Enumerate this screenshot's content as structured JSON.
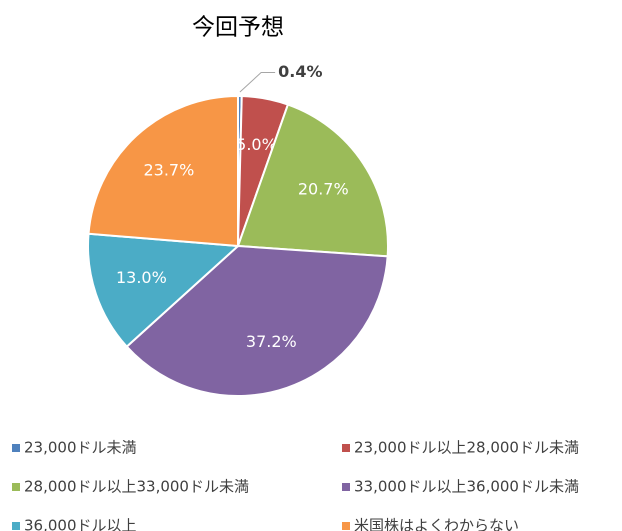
{
  "chart_data": {
    "type": "pie",
    "title": "今回予想",
    "categories": [
      "23,000ドル未満",
      "23,000ドル以上28,000ドル未満",
      "28,000ドル以上33,000ドル未満",
      "33,000ドル以上36,000ドル未満",
      "36,000ドル以上",
      "米国株はよくわからない"
    ],
    "values": [
      0.4,
      5.0,
      20.7,
      37.2,
      13.0,
      23.7
    ],
    "value_labels": [
      "0.4%",
      "5.0%",
      "20.7%",
      "37.2%",
      "13.0%",
      "23.7%"
    ],
    "colors": [
      "#4f81bd",
      "#c0504d",
      "#9bbb59",
      "#8064a2",
      "#4bacc6",
      "#f79646"
    ]
  }
}
